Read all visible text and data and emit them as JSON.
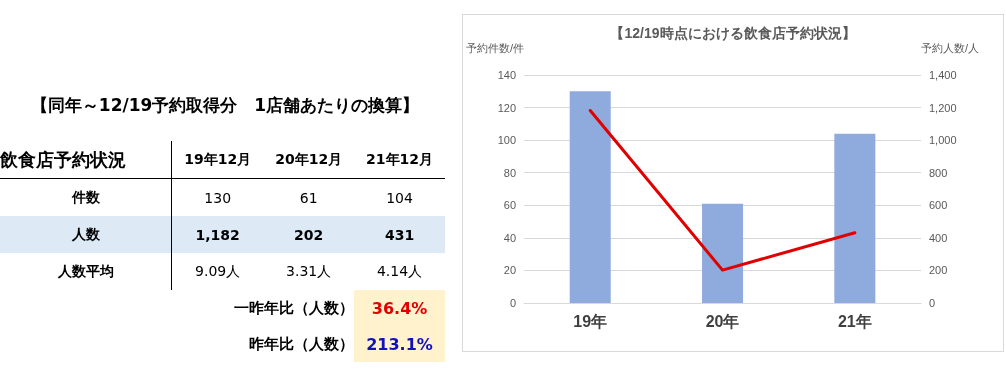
{
  "chart_data": [
    {
      "type": "other",
      "title": "【同年～12/19予約取得分　1店舗あたりの換算】",
      "xlabel": "飲食店予約状況",
      "categories": [
        "19年12月",
        "20年12月",
        "21年12月"
      ],
      "y_categories": [
        "件数",
        "人数",
        "人数平均"
      ],
      "cell_labels": [
        [
          "130",
          "61",
          "104"
        ],
        [
          "1,182",
          "202",
          "431"
        ],
        [
          "9.09人",
          "3.31人",
          "4.14人"
        ]
      ],
      "annotations": [
        "一昨年比（人数）",
        "36.4%",
        "昨年比（人数）",
        "213.1%"
      ]
    },
    {
      "type": "bar",
      "title": "【12/19時点における飲食店予約状況】",
      "ylabel": "予約件数/件",
      "y2label": "予約人数/人",
      "categories": [
        "19年",
        "20年",
        "21年"
      ],
      "series": [
        {
          "type": "bar",
          "color": "#8faadc",
          "values": [
            130,
            61,
            104
          ]
        },
        {
          "type": "line",
          "axis": "y2",
          "color": "#e00000",
          "values": [
            1182,
            202,
            431
          ]
        }
      ],
      "ylim": [
        0,
        140
      ],
      "yticks": [
        0,
        20,
        40,
        60,
        80,
        100,
        120,
        140
      ],
      "y2lim": [
        0,
        1400
      ],
      "y2ticks": [
        0,
        200,
        400,
        600,
        800,
        {
          "value": 1000,
          "label": "1,000"
        },
        {
          "value": 1200,
          "label": "1,200"
        },
        {
          "value": 1400,
          "label": "1,400"
        }
      ],
      "grid": "y",
      "marker": "none",
      "line_style": "solid"
    }
  ]
}
